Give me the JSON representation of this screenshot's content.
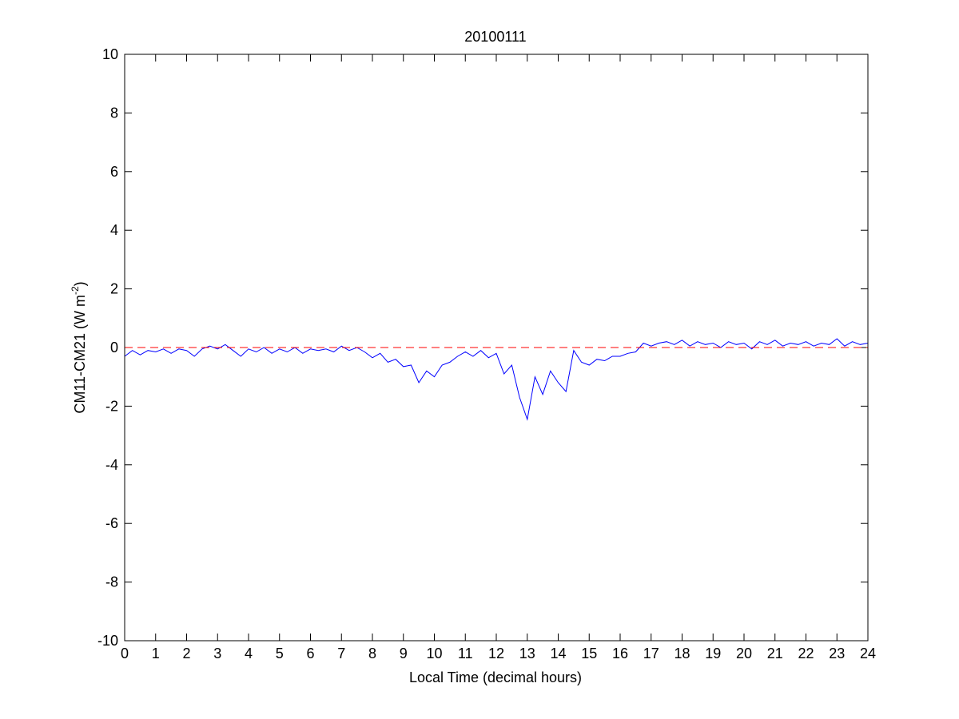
{
  "chart_data": {
    "type": "line",
    "title": "20100111",
    "xlabel": "Local Time (decimal hours)",
    "ylabel_main": "CM11-CM21 (W m",
    "ylabel_sup": "-2",
    "ylabel_close": ")",
    "xlim": [
      0,
      24
    ],
    "ylim": [
      -10,
      10
    ],
    "xticks": [
      0,
      1,
      2,
      3,
      4,
      5,
      6,
      7,
      8,
      9,
      10,
      11,
      12,
      13,
      14,
      15,
      16,
      17,
      18,
      19,
      20,
      21,
      22,
      23,
      24
    ],
    "yticks": [
      -10,
      -8,
      -6,
      -4,
      -2,
      0,
      2,
      4,
      6,
      8,
      10
    ],
    "grid": false,
    "series": [
      {
        "name": "CM11-CM21",
        "color": "#0000ff",
        "x_start": 0,
        "x_step": 0.25,
        "values": [
          -0.3,
          -0.1,
          -0.25,
          -0.1,
          -0.15,
          -0.05,
          -0.2,
          -0.05,
          -0.1,
          -0.3,
          -0.05,
          0.05,
          -0.05,
          0.1,
          -0.1,
          -0.3,
          -0.05,
          -0.15,
          0.0,
          -0.2,
          -0.05,
          -0.15,
          0.0,
          -0.2,
          -0.05,
          -0.1,
          -0.05,
          -0.15,
          0.05,
          -0.1,
          0.0,
          -0.15,
          -0.35,
          -0.2,
          -0.5,
          -0.4,
          -0.65,
          -0.6,
          -1.2,
          -0.8,
          -1.0,
          -0.6,
          -0.5,
          -0.3,
          -0.15,
          -0.3,
          -0.1,
          -0.35,
          -0.2,
          -0.9,
          -0.6,
          -1.7,
          -2.45,
          -1.0,
          -1.6,
          -0.8,
          -1.2,
          -1.5,
          -0.1,
          -0.5,
          -0.6,
          -0.4,
          -0.45,
          -0.3,
          -0.3,
          -0.2,
          -0.15,
          0.15,
          0.05,
          0.15,
          0.2,
          0.1,
          0.25,
          0.05,
          0.2,
          0.1,
          0.15,
          0.0,
          0.2,
          0.1,
          0.15,
          -0.05,
          0.2,
          0.1,
          0.25,
          0.05,
          0.15,
          0.1,
          0.2,
          0.05,
          0.15,
          0.1,
          0.3,
          0.05,
          0.2,
          0.1,
          0.15
        ]
      },
      {
        "name": "zero reference",
        "color": "#ff0000",
        "style": "dashed",
        "y_value": 0
      }
    ]
  }
}
